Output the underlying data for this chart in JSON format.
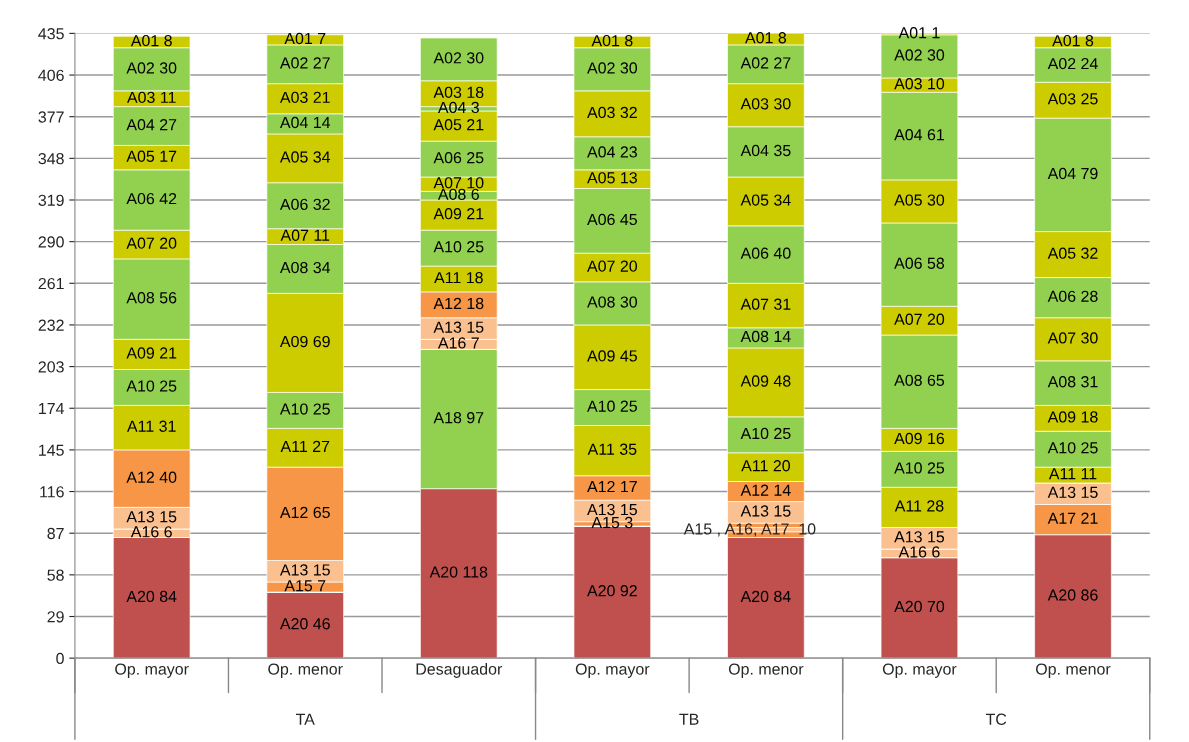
{
  "chart_data": {
    "type": "bar",
    "stacked": true,
    "categories": [
      "Op. mayor",
      "Op. menor",
      "Desaguador",
      "Op. mayor",
      "Op. menor",
      "Op. mayor",
      "Op. menor"
    ],
    "ylim": [
      0,
      435
    ],
    "yticks": [
      0,
      29,
      58,
      87,
      116,
      145,
      174,
      203,
      232,
      261,
      290,
      319,
      348,
      377,
      406,
      435
    ],
    "grid": "y",
    "series": [
      {
        "color": "#c0504d",
        "values": [
          84,
          46,
          118,
          92,
          84,
          70,
          86
        ],
        "value_labels": [
          "A20 84",
          "A20 46",
          "A20 118",
          "A20 92",
          "A20 84",
          "A20 70",
          "A20 86"
        ]
      },
      {
        "color": "#92d050",
        "values": [
          null,
          null,
          97,
          null,
          null,
          null,
          null
        ],
        "value_labels": [
          null,
          null,
          "A18 97",
          null,
          null,
          null,
          null
        ]
      },
      {
        "color": "#f79646",
        "values": [
          null,
          null,
          null,
          null,
          4,
          null,
          21
        ],
        "value_labels": [
          null,
          null,
          null,
          null,
          null,
          null,
          "A17 21"
        ]
      },
      {
        "color": "#fac090",
        "values": [
          6,
          null,
          7,
          null,
          3,
          6,
          null
        ],
        "value_labels": [
          "A16 6",
          null,
          "A16 7",
          null,
          null,
          "A16 6",
          null
        ]
      },
      {
        "color": "#f79646",
        "values": [
          null,
          7,
          null,
          3,
          3,
          null,
          null
        ],
        "value_labels": [
          null,
          "A15 7",
          null,
          "A15 3",
          null,
          null,
          null
        ]
      },
      {
        "color": "#fac090",
        "values": [
          15,
          15,
          15,
          15,
          15,
          15,
          15
        ],
        "value_labels": [
          "A13 15",
          "A13 15",
          "A13 15",
          "A13 15",
          "A13 15",
          "A13 15",
          "A13 15"
        ]
      },
      {
        "color": "#f79646",
        "values": [
          40,
          65,
          18,
          17,
          14,
          null,
          null
        ],
        "value_labels": [
          "A12 40",
          "A12 65",
          "A12 18",
          "A12 17",
          "A12 14",
          null,
          null
        ]
      },
      {
        "color": "#cccc00",
        "values": [
          31,
          27,
          18,
          35,
          20,
          28,
          11
        ],
        "value_labels": [
          "A11 31",
          "A11 27",
          "A11 18",
          "A11 35",
          "A11 20",
          "A11 28",
          "A11 11"
        ]
      },
      {
        "color": "#92d050",
        "values": [
          25,
          25,
          25,
          25,
          25,
          25,
          25
        ],
        "value_labels": [
          "A10 25",
          "A10 25",
          "A10 25",
          "A10 25",
          "A10 25",
          "A10 25",
          "A10 25"
        ]
      },
      {
        "color": "#cccc00",
        "values": [
          21,
          69,
          21,
          45,
          48,
          16,
          18
        ],
        "value_labels": [
          "A09 21",
          "A09 69",
          "A09 21",
          "A09 45",
          "A09 48",
          "A09 16",
          "A09 18"
        ]
      },
      {
        "color": "#92d050",
        "values": [
          56,
          34,
          6,
          30,
          14,
          65,
          31
        ],
        "value_labels": [
          "A08 56",
          "A08 34",
          "A08 6",
          "A08 30",
          "A08 14",
          "A08 65",
          "A08 31"
        ]
      },
      {
        "color": "#cccc00",
        "values": [
          20,
          11,
          10,
          20,
          31,
          20,
          30
        ],
        "value_labels": [
          "A07 20",
          "A07 11",
          "A07 10",
          "A07 20",
          "A07 31",
          "A07 20",
          "A07 30"
        ]
      },
      {
        "color": "#92d050",
        "values": [
          42,
          32,
          25,
          45,
          40,
          58,
          28
        ],
        "value_labels": [
          "A06 42",
          "A06 32",
          "A06 25",
          "A06 45",
          "A06 40",
          "A06 58",
          "A06 28"
        ]
      },
      {
        "color": "#cccc00",
        "values": [
          17,
          34,
          21,
          13,
          34,
          30,
          32
        ],
        "value_labels": [
          "A05 17",
          "A05 34",
          "A05 21",
          "A05 13",
          "A05 34",
          "A05 30",
          "A05 32"
        ]
      },
      {
        "color": "#92d050",
        "values": [
          27,
          14,
          3,
          23,
          35,
          61,
          79
        ],
        "value_labels": [
          "A04 27",
          "A04 14",
          "A04 3",
          "A04 23",
          "A04 35",
          "A04 61",
          "A04 79"
        ]
      },
      {
        "color": "#cccc00",
        "values": [
          11,
          21,
          18,
          32,
          30,
          10,
          25
        ],
        "value_labels": [
          "A03 11",
          "A03 21",
          "A03 18",
          "A03 32",
          "A03 30",
          "A03 10",
          "A03 25"
        ]
      },
      {
        "color": "#92d050",
        "values": [
          30,
          27,
          30,
          30,
          27,
          30,
          24
        ],
        "value_labels": [
          "A02 30",
          "A02 27",
          "A02 30",
          "A02 30",
          "A02 27",
          "A02 30",
          "A02 24"
        ]
      },
      {
        "color": "#cccc00",
        "values": [
          8,
          7,
          null,
          8,
          8,
          1,
          8
        ],
        "value_labels": [
          "A01 8",
          "A01 7",
          null,
          "A01 8",
          "A01 8",
          "A01 1",
          "A01 8"
        ]
      }
    ],
    "annotations": [
      "A15 , A16, A17  10",
      "TA",
      "TB",
      "TC"
    ]
  }
}
